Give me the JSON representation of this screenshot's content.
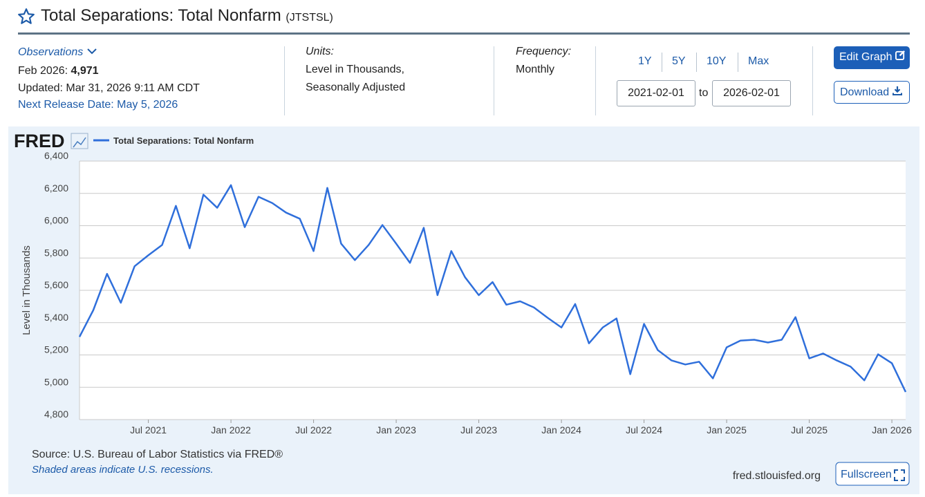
{
  "header": {
    "title": "Total Separations: Total Nonfarm",
    "series_id": "(JTSTSL)"
  },
  "observations": {
    "label": "Observations",
    "date": "Feb 2026:",
    "value": "4,971",
    "updated": "Updated: Mar 31, 2026 9:11 AM CDT",
    "next_release": "Next Release Date: May 5, 2026"
  },
  "units": {
    "label": "Units:",
    "lines": [
      "Level in Thousands,",
      "Seasonally Adjusted"
    ]
  },
  "frequency": {
    "label": "Frequency:",
    "value": "Monthly"
  },
  "range": {
    "buttons": [
      "1Y",
      "5Y",
      "10Y",
      "Max"
    ],
    "start": "2021-02-01",
    "separator": "to",
    "end": "2026-02-01"
  },
  "actions": {
    "edit": "Edit Graph",
    "download": "Download"
  },
  "footer": {
    "logo": "FRED",
    "source": "Source: U.S. Bureau of Labor Statistics via FRED®",
    "note": "Shaded areas indicate U.S. recessions.",
    "site": "fred.stlouisfed.org",
    "fullscreen": "Fullscreen"
  },
  "chart_data": {
    "type": "line",
    "ylabel": "Level in Thousands",
    "grid": true,
    "x": [
      "2021-02",
      "2021-03",
      "2021-04",
      "2021-05",
      "2021-06",
      "2021-07",
      "2021-08",
      "2021-09",
      "2021-10",
      "2021-11",
      "2021-12",
      "2022-01",
      "2022-02",
      "2022-03",
      "2022-04",
      "2022-05",
      "2022-06",
      "2022-07",
      "2022-08",
      "2022-09",
      "2022-10",
      "2022-11",
      "2022-12",
      "2023-01",
      "2023-02",
      "2023-03",
      "2023-04",
      "2023-05",
      "2023-06",
      "2023-07",
      "2023-08",
      "2023-09",
      "2023-10",
      "2023-11",
      "2023-12",
      "2024-01",
      "2024-02",
      "2024-03",
      "2024-04",
      "2024-05",
      "2024-06",
      "2024-07",
      "2024-08",
      "2024-09",
      "2024-10",
      "2024-11",
      "2024-12",
      "2025-01",
      "2025-02",
      "2025-03",
      "2025-04",
      "2025-05",
      "2025-06",
      "2025-07",
      "2025-08",
      "2025-09",
      "2025-10",
      "2025-11",
      "2025-12",
      "2026-01",
      "2026-02"
    ],
    "series": [
      {
        "name": "Total Separations: Total Nonfarm",
        "color": "#2f6fdb",
        "values": [
          5312,
          5477,
          5702,
          5523,
          5749,
          5817,
          5881,
          6123,
          5860,
          6192,
          6111,
          6251,
          5991,
          6179,
          6140,
          6081,
          6043,
          5843,
          6234,
          5889,
          5787,
          5881,
          6004,
          5889,
          5770,
          5987,
          5570,
          5843,
          5681,
          5570,
          5651,
          5511,
          5532,
          5494,
          5430,
          5370,
          5515,
          5272,
          5370,
          5426,
          5081,
          5392,
          5230,
          5166,
          5141,
          5158,
          5055,
          5247,
          5289,
          5294,
          5277,
          5294,
          5434,
          5179,
          5209,
          5166,
          5128,
          5043,
          5204,
          5149,
          4971
        ]
      }
    ],
    "xlim": [
      "2021-02",
      "2026-02"
    ],
    "xticks": [
      {
        "value": "2021-07",
        "label": "Jul 2021"
      },
      {
        "value": "2022-01",
        "label": "Jan 2022"
      },
      {
        "value": "2022-07",
        "label": "Jul 2022"
      },
      {
        "value": "2023-01",
        "label": "Jan 2023"
      },
      {
        "value": "2023-07",
        "label": "Jul 2023"
      },
      {
        "value": "2024-01",
        "label": "Jan 2024"
      },
      {
        "value": "2024-07",
        "label": "Jul 2024"
      },
      {
        "value": "2025-01",
        "label": "Jan 2025"
      },
      {
        "value": "2025-07",
        "label": "Jul 2025"
      },
      {
        "value": "2026-01",
        "label": "Jan 2026"
      }
    ],
    "ylim": [
      4800,
      6400
    ],
    "yticks": [
      {
        "value": 4800,
        "label": "4,800"
      },
      {
        "value": 5000,
        "label": "5,000"
      },
      {
        "value": 5200,
        "label": "5,200"
      },
      {
        "value": 5400,
        "label": "5,400"
      },
      {
        "value": 5600,
        "label": "5,600"
      },
      {
        "value": 5800,
        "label": "5,800"
      },
      {
        "value": 6000,
        "label": "6,000"
      },
      {
        "value": 6200,
        "label": "6,200"
      },
      {
        "value": 6400,
        "label": "6,400"
      }
    ]
  }
}
